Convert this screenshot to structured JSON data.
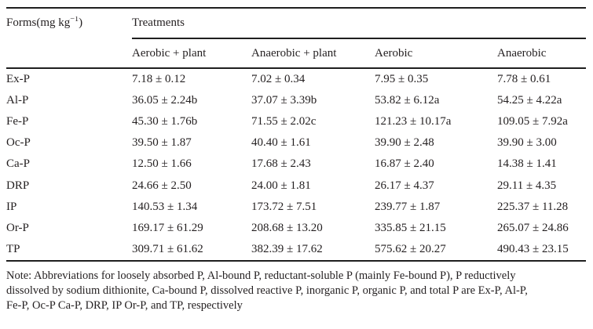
{
  "table": {
    "forms_header": {
      "prefix": "Forms(mg kg",
      "sup": "−1",
      "suffix": ")"
    },
    "treatments_label": "Treatments",
    "columns": [
      "Aerobic + plant",
      "Anaerobic + plant",
      "Aerobic",
      "Anaerobic"
    ],
    "rows": [
      {
        "form": "Ex-P",
        "values": [
          "7.18 ± 0.12",
          "7.02 ± 0.34",
          "7.95 ± 0.35",
          "7.78 ± 0.61"
        ]
      },
      {
        "form": "Al-P",
        "values": [
          "36.05 ± 2.24b",
          "37.07 ± 3.39b",
          "53.82 ± 6.12a",
          "54.25 ± 4.22a"
        ]
      },
      {
        "form": "Fe-P",
        "values": [
          "45.30 ± 1.76b",
          "71.55 ± 2.02c",
          "121.23 ± 10.17a",
          "109.05 ± 7.92a"
        ]
      },
      {
        "form": "Oc-P",
        "values": [
          "39.50 ± 1.87",
          "40.40 ± 1.61",
          "39.90 ± 2.48",
          "39.90 ± 3.00"
        ]
      },
      {
        "form": "Ca-P",
        "values": [
          "12.50 ± 1.66",
          "17.68 ± 2.43",
          "16.87 ± 2.40",
          "14.38 ± 1.41"
        ]
      },
      {
        "form": "DRP",
        "values": [
          "24.66 ± 2.50",
          "24.00 ± 1.81",
          "26.17 ± 4.37",
          "29.11 ± 4.35"
        ]
      },
      {
        "form": "IP",
        "values": [
          "140.53 ± 1.34",
          "173.72 ± 7.51",
          "239.77 ± 1.87",
          "225.37 ± 11.28"
        ]
      },
      {
        "form": "Or-P",
        "values": [
          "169.17 ± 61.29",
          "208.68 ± 13.20",
          "335.85 ± 21.15",
          "265.07 ± 24.86"
        ]
      },
      {
        "form": "TP",
        "values": [
          "309.71 ± 61.62",
          "382.39 ± 17.62",
          "575.62 ± 20.27",
          "490.43 ± 23.15"
        ]
      }
    ],
    "note_lines": [
      "Note: Abbreviations for loosely absorbed P, Al-bound P, reductant-soluble P (mainly Fe-bound P), P reductively",
      "dissolved by sodium dithionite, Ca-bound P, dissolved reactive P, inorganic P, organic P, and total P are Ex-P, Al-P,",
      "Fe-P, Oc-P Ca-P, DRP, IP Or-P, and TP, respectively"
    ]
  },
  "colors": {
    "text": "#231f20",
    "rule": "#1f1f1f",
    "background": "#ffffff"
  }
}
